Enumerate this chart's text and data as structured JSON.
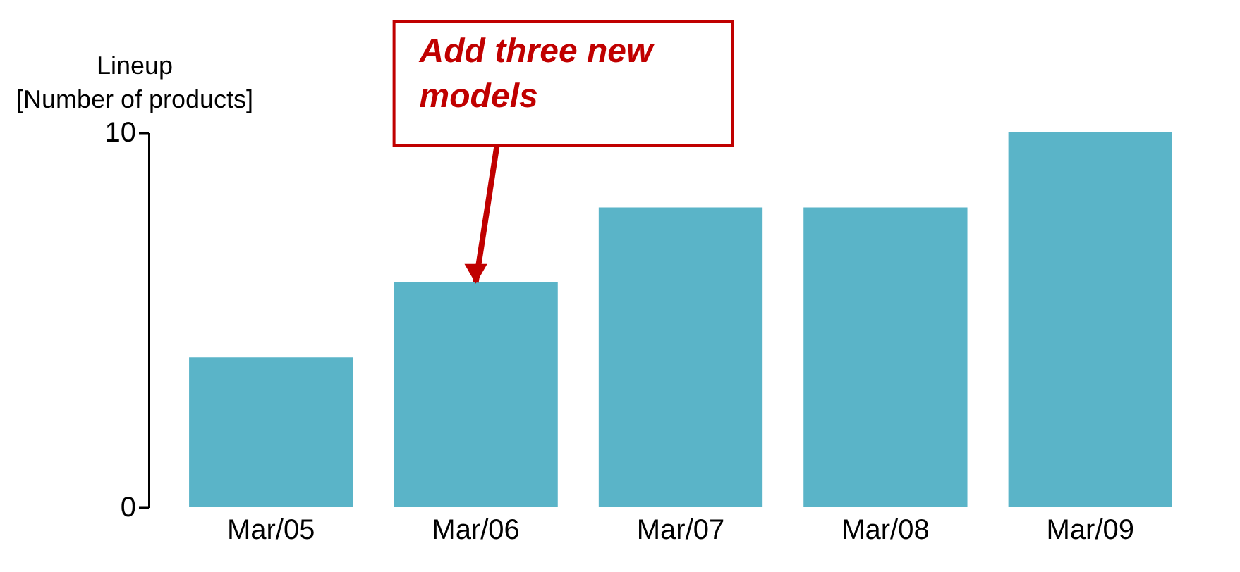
{
  "chart_data": {
    "type": "bar",
    "ylabel": "Lineup\n[Number of products]",
    "categories": [
      "Mar/05",
      "Mar/06",
      "Mar/07",
      "Mar/08",
      "Mar/09"
    ],
    "values": [
      4,
      6,
      8,
      8,
      10
    ],
    "color": "#5ab4c8",
    "ylim": [
      0,
      10
    ],
    "yticks": [
      0,
      10
    ],
    "grid": false,
    "annotations": [
      {
        "text": "Add three new models",
        "x": "Mar/06",
        "y": 6
      }
    ]
  }
}
